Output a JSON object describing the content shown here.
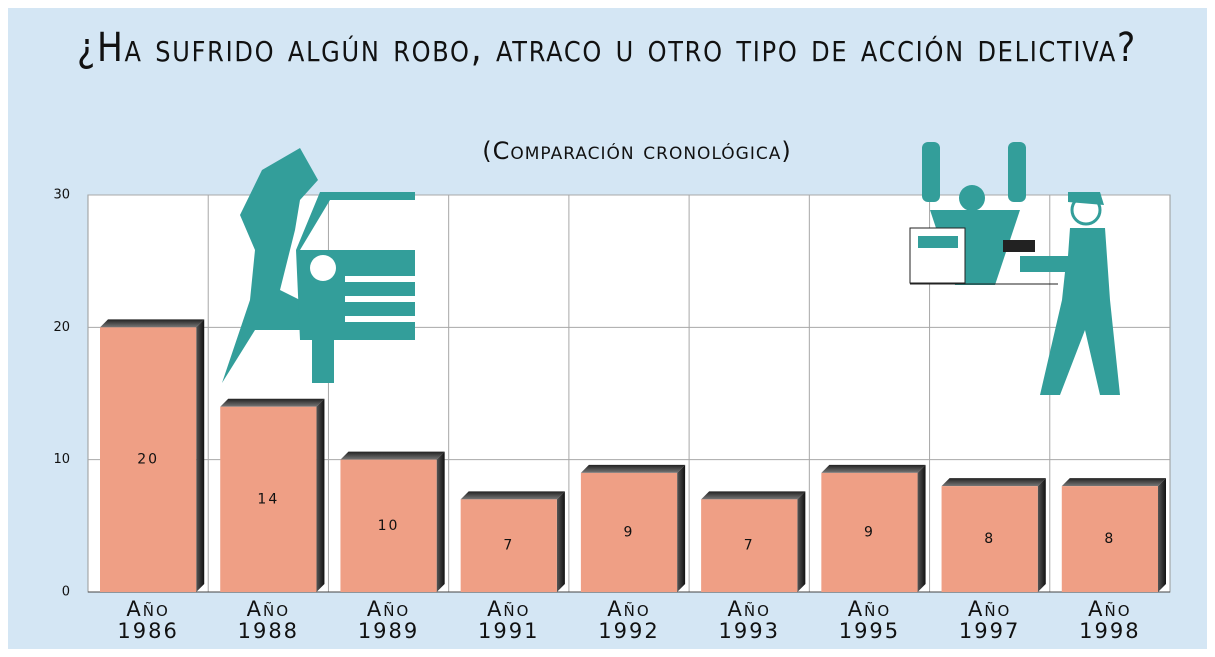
{
  "chart_data": {
    "type": "bar",
    "title": "¿Ha sufrido algún robo, atraco u otro tipo de acción delictiva?",
    "subtitle": "(Comparación cronológica)",
    "categories": [
      "Año 1986",
      "Año 1988",
      "Año 1989",
      "Año 1991",
      "Año 1992",
      "Año 1993",
      "Año 1995",
      "Año 1997",
      "Año 1998"
    ],
    "values": [
      20,
      14,
      10,
      7,
      9,
      7,
      9,
      8,
      8
    ],
    "color": "#ef9f85",
    "ylim": [
      0,
      30
    ],
    "yticks": [
      0,
      10,
      20,
      30
    ],
    "grid": true
  }
}
